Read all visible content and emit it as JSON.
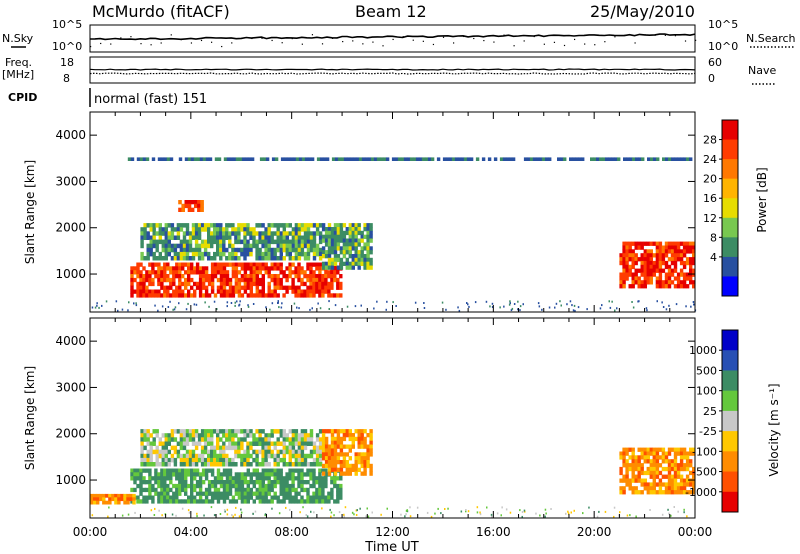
{
  "header": {
    "station": "McMurdo (fitACF)",
    "beam": "Beam 12",
    "date": "25/May/2010"
  },
  "strips": {
    "nsky_label": "N.Sky",
    "nsky_ticks": [
      "10^5",
      "10^0"
    ],
    "nsearch_label": "N.Search",
    "nsearch_ticks": [
      "10^5",
      "10^0"
    ],
    "freq_label": "Freq.",
    "freq_unit": "[MHz]",
    "freq_ticks": [
      "18",
      "8"
    ],
    "nave_label": "Nave",
    "nave_ticks": [
      "60",
      "0"
    ],
    "cpid_label": "CPID",
    "cpid_value": "normal (fast) 151"
  },
  "chart_data": [
    {
      "type": "heatmap",
      "name": "power",
      "ylabel": "Slant Range [km]",
      "xlabel": "",
      "y_ticks": [
        "1000",
        "2000",
        "3000",
        "4000"
      ],
      "ylim": [
        180,
        4500
      ],
      "xlim_hours": [
        0,
        24
      ],
      "colorbar_label": "Power [dB]",
      "colorbar_ticks": [
        "28",
        "24",
        "20",
        "16",
        "12",
        "8",
        "4"
      ],
      "colorbar_colors": [
        "#e60000",
        "#ff3c00",
        "#ff7800",
        "#ffb400",
        "#e6dc00",
        "#78c850",
        "#3c8c64",
        "#2850a0",
        "#0000ff"
      ],
      "echo_regions": [
        {
          "t": [
            1.6,
            10.0
          ],
          "range": [
            500,
            1250
          ],
          "level": "strong"
        },
        {
          "t": [
            2.0,
            9.2
          ],
          "range": [
            1300,
            2100
          ],
          "level": "moderate"
        },
        {
          "t": [
            3.5,
            4.5
          ],
          "range": [
            2350,
            2600
          ],
          "level": "strong"
        },
        {
          "t": [
            9.2,
            11.2
          ],
          "range": [
            1100,
            2100
          ],
          "level": "moderate"
        },
        {
          "t": [
            21.0,
            24.0
          ],
          "range": [
            700,
            1700
          ],
          "level": "strong"
        },
        {
          "t": [
            1.5,
            24.0
          ],
          "range": [
            3450,
            3520
          ],
          "level": "weak"
        }
      ]
    },
    {
      "type": "heatmap",
      "name": "velocity",
      "ylabel": "Slant Range [km]",
      "xlabel": "Time UT",
      "x_ticks": [
        "00:00",
        "04:00",
        "08:00",
        "12:00",
        "16:00",
        "20:00",
        "00:00"
      ],
      "y_ticks": [
        "1000",
        "2000",
        "3000",
        "4000"
      ],
      "ylim": [
        180,
        4500
      ],
      "xlim_hours": [
        0,
        24
      ],
      "colorbar_label": "Velocity [m s⁻¹]",
      "colorbar_ticks": [
        "1000",
        "500",
        "100",
        "25",
        "-25",
        "-100",
        "-500",
        "-1000"
      ],
      "colorbar_colors": [
        "#0000c8",
        "#2850b4",
        "#3c8c64",
        "#64c83c",
        "#c8c8c8",
        "#ffc800",
        "#ff8c00",
        "#ff5000",
        "#e60000"
      ],
      "echo_regions": [
        {
          "t": [
            1.6,
            10.0
          ],
          "range": [
            500,
            1250
          ],
          "velocity": "positive"
        },
        {
          "t": [
            2.0,
            9.2
          ],
          "range": [
            1300,
            2100
          ],
          "velocity": "mixed"
        },
        {
          "t": [
            9.2,
            11.2
          ],
          "range": [
            1100,
            2100
          ],
          "velocity": "negative"
        },
        {
          "t": [
            21.0,
            24.0
          ],
          "range": [
            700,
            1700
          ],
          "velocity": "negative"
        },
        {
          "t": [
            0.0,
            1.8
          ],
          "range": [
            480,
            700
          ],
          "velocity": "negative"
        }
      ]
    }
  ]
}
